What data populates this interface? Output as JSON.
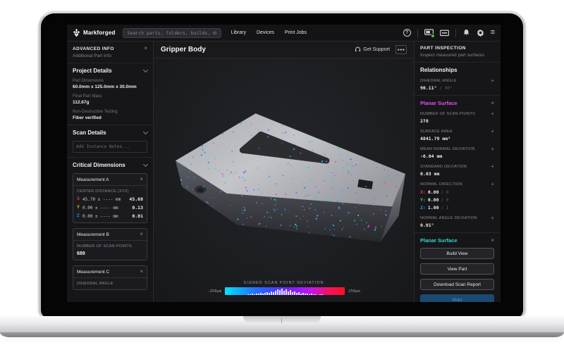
{
  "topbar": {
    "brand": "Markforged",
    "search_placeholder": "Search parts, folders, builds, devices...",
    "nav": [
      "Library",
      "Devices",
      "Print Jobs"
    ]
  },
  "icons": {
    "close": "×",
    "plus": "+",
    "help": "?",
    "menu": "≡",
    "more": "●●●"
  },
  "sidebar": {
    "header": {
      "title": "ADVANCED INFO",
      "subtitle": "Additional Part Info"
    },
    "project_details": {
      "title": "Project Details",
      "fields": [
        {
          "label": "Part Dimensions",
          "value": "60.0mm x 125.0mm x 30.0mm"
        },
        {
          "label": "Final Part Mass",
          "value": "112.67g"
        },
        {
          "label": "Non-Destructive Testing",
          "value": "Fiber verified"
        }
      ]
    },
    "scan_details": {
      "title": "Scan Details",
      "notes_placeholder": "Add Instance Notes..."
    },
    "critical_dimensions": {
      "title": "Critical Dimensions",
      "measurement_a": {
        "name": "Measurement A",
        "metric": "CENTER DISTANCE (XYZ)",
        "rows": [
          {
            "axis": "X",
            "color": "#e53946",
            "nominal": "45.70 ± ---- mm",
            "actual": "45.68"
          },
          {
            "axis": "Y",
            "color": "#c5d235",
            "nominal": "0.00 ± ---- mm",
            "actual": "0.13"
          },
          {
            "axis": "Z",
            "color": "#2f8fe8",
            "nominal": "0.00 ± ---- mm",
            "actual": "0.01"
          }
        ]
      },
      "measurement_b": {
        "name": "Measurement B",
        "metric": "NUMBER OF SCAN POINTS",
        "value": "689"
      },
      "measurement_c": {
        "name": "Measurement C",
        "metric": "DIHEDRAL ANGLE"
      }
    }
  },
  "main": {
    "title": "Gripper Body",
    "get_support": "Get Support",
    "scale": {
      "title": "SIGNED SCAN POINT DEVIATION",
      "min": "-250μm",
      "max": "250μm",
      "histogram": [
        1,
        1,
        2,
        1,
        2,
        2,
        3,
        2,
        3,
        4,
        3,
        5,
        4,
        6,
        8,
        7,
        9,
        6,
        8,
        5,
        7,
        4,
        5,
        3,
        4,
        2,
        3,
        2,
        2,
        1,
        2,
        1,
        1,
        0,
        1,
        1
      ]
    },
    "scan_points": {
      "count": 240,
      "colors": [
        {
          "hex": "#3f7df2",
          "w": 40
        },
        {
          "hex": "#00d9ff",
          "w": 18
        },
        {
          "hex": "#5fa4ff",
          "w": 12
        },
        {
          "hex": "#d63af0",
          "w": 15
        },
        {
          "hex": "#ff3db0",
          "w": 6
        },
        {
          "hex": "#22dd88",
          "w": 9
        }
      ]
    }
  },
  "inspector": {
    "header": "PART INSPECTION",
    "subheader": "Inspect measured part surfaces",
    "relationships": {
      "title": "Relationships",
      "metric": "DIHEDRAL ANGLE",
      "value": "90.11°",
      "nominal": "/ 90°"
    },
    "planar_surface": {
      "title": "Planar Surface",
      "accent": "#e14ef0",
      "metrics": [
        {
          "label": "NUMBER OF SCAN POINTS",
          "value": "278"
        },
        {
          "label": "SURFACE AREA",
          "value": "4841.79 mm²"
        },
        {
          "label": "MEAN NORMAL DEVIATION",
          "value": "-0.04 mm"
        },
        {
          "label": "STANDARD DEVIATION",
          "value": "0.03 mm"
        }
      ],
      "normal_direction": {
        "label": "NORMAL DIRECTION",
        "rows": [
          {
            "axis": "X:",
            "color": "#e53946",
            "value": "0.00",
            "nominal": "/ 0"
          },
          {
            "axis": "Y:",
            "color": "#3ec46a",
            "value": "0.00",
            "nominal": "/ 0"
          },
          {
            "axis": "Z:",
            "color": "#2f8fe8",
            "value": "1.00",
            "nominal": "/ 1"
          }
        ]
      },
      "angle_deviation": {
        "label": "NORMAL ANGLE DEVIATION",
        "value": "0.01°"
      }
    },
    "selection": {
      "title": "Planar Surface",
      "accent": "#2fd8d2",
      "buttons": [
        "Build View",
        "View Part",
        "Download Scan Report"
      ],
      "primary_button": "Print"
    }
  }
}
